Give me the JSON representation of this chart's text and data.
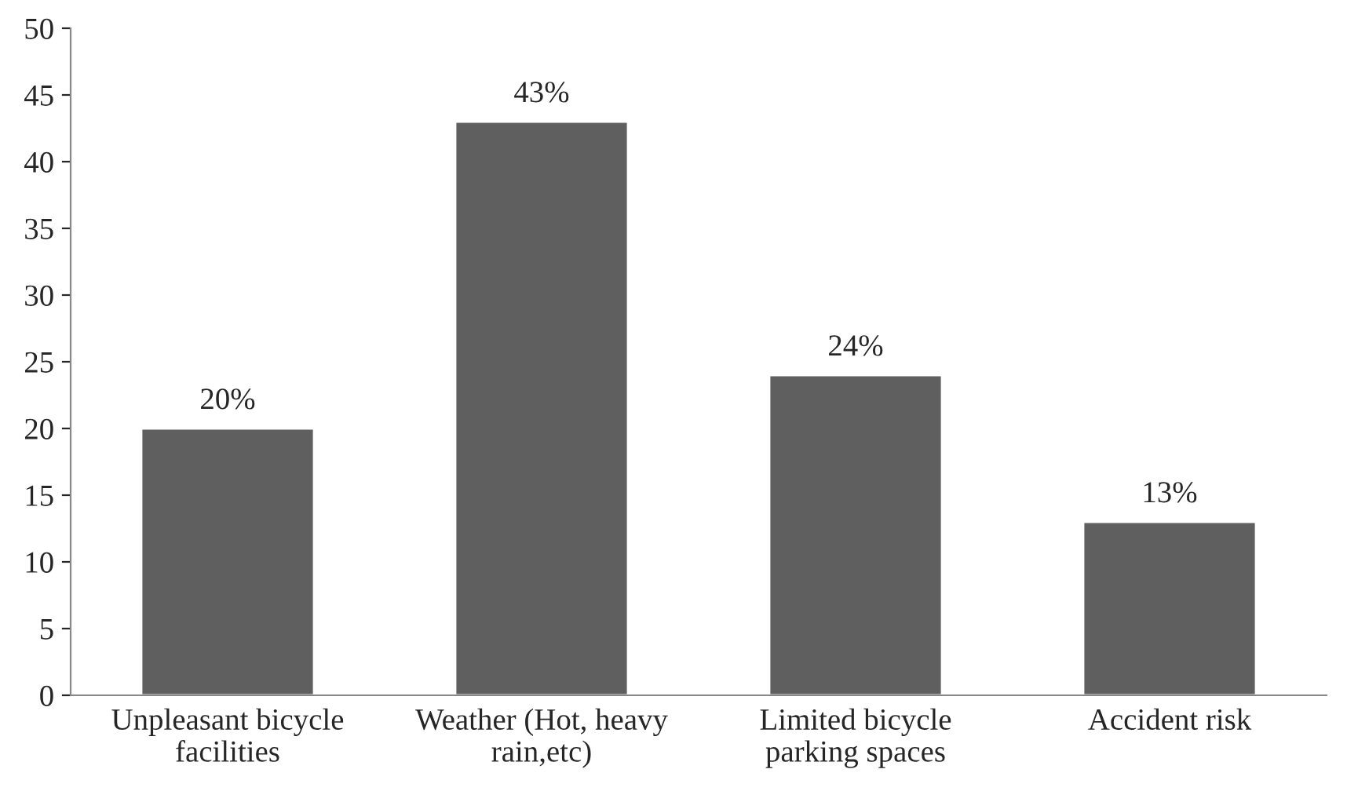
{
  "chart_data": {
    "type": "bar",
    "categories": [
      "Unpleasant bicycle\nfacilities",
      "Weather (Hot, heavy\nrain,etc)",
      "Limited bicycle\nparking spaces",
      "Accident risk"
    ],
    "values": [
      20,
      43,
      24,
      13
    ],
    "value_labels": [
      "20%",
      "43%",
      "24%",
      "13%"
    ],
    "color": "#5f5f5f",
    "ylim": [
      0,
      50
    ],
    "yticks": [
      0,
      5,
      10,
      15,
      20,
      25,
      30,
      35,
      40,
      45,
      50
    ],
    "grid": false,
    "legend": false
  }
}
